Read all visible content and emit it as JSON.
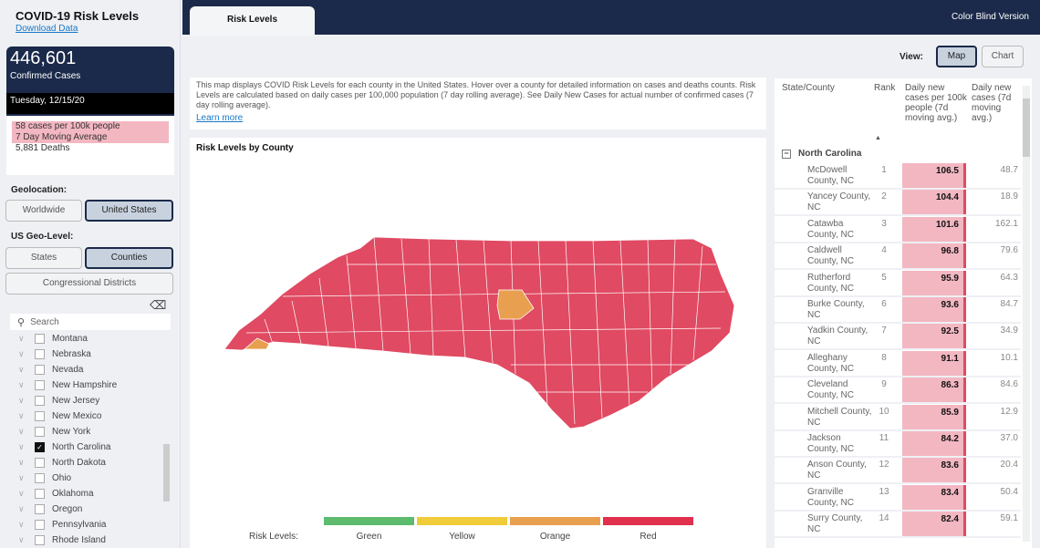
{
  "sidebar": {
    "title": "COVID-19 Risk Levels",
    "download": "Download Data",
    "confirmed": "446,601",
    "confirmed_label": "Confirmed Cases",
    "date": "Tuesday, 12/15/20",
    "stat1": "58 cases per 100k people",
    "stat2": "7 Day Moving Average",
    "deaths": "5,881 Deaths",
    "geo_label": "Geolocation:",
    "geo_options": [
      "Worldwide",
      "United States"
    ],
    "geo_selected": "United States",
    "level_label": "US Geo-Level:",
    "level_options": [
      "States",
      "Counties",
      "Congressional Districts"
    ],
    "level_selected": "Counties",
    "search_placeholder": "Search",
    "states": [
      {
        "name": "Montana",
        "checked": false
      },
      {
        "name": "Nebraska",
        "checked": false
      },
      {
        "name": "Nevada",
        "checked": false
      },
      {
        "name": "New Hampshire",
        "checked": false
      },
      {
        "name": "New Jersey",
        "checked": false
      },
      {
        "name": "New Mexico",
        "checked": false
      },
      {
        "name": "New York",
        "checked": false
      },
      {
        "name": "North Carolina",
        "checked": true
      },
      {
        "name": "North Dakota",
        "checked": false
      },
      {
        "name": "Ohio",
        "checked": false
      },
      {
        "name": "Oklahoma",
        "checked": false
      },
      {
        "name": "Oregon",
        "checked": false
      },
      {
        "name": "Pennsylvania",
        "checked": false
      },
      {
        "name": "Rhode Island",
        "checked": false
      }
    ]
  },
  "header": {
    "tab": "Risk Levels",
    "color_blind": "Color Blind Version"
  },
  "view": {
    "label": "View:",
    "map": "Map",
    "chart": "Chart",
    "selected": "Map"
  },
  "description": {
    "text": "This map displays COVID Risk Levels for each county in the United States. Hover over a county for detailed information on cases and deaths counts. Risk Levels are calculated based on daily cases per 100,000 population (7 day rolling average). See Daily New Cases for actual number of confirmed cases (7 day rolling average).",
    "link": "Learn more"
  },
  "map": {
    "title": "Risk Levels by County",
    "legend_label": "Risk Levels:",
    "levels": [
      {
        "name": "Green",
        "color": "#5dbb6e"
      },
      {
        "name": "Yellow",
        "color": "#f0cc3a"
      },
      {
        "name": "Orange",
        "color": "#e8a050"
      },
      {
        "name": "Red",
        "color": "#e0304e"
      }
    ],
    "county_color": "#e04a62",
    "orange_color": "#e8a050"
  },
  "table": {
    "headers": [
      "State/County",
      "Rank",
      "Daily new cases per 100k people (7d moving avg.)",
      "Daily new cases (7d moving avg.)"
    ],
    "group": "North Carolina",
    "rows": [
      {
        "county": "McDowell County, NC",
        "rank": "1",
        "per100k": "106.5",
        "cases": "48.7"
      },
      {
        "county": "Yancey County, NC",
        "rank": "2",
        "per100k": "104.4",
        "cases": "18.9"
      },
      {
        "county": "Catawba County, NC",
        "rank": "3",
        "per100k": "101.6",
        "cases": "162.1"
      },
      {
        "county": "Caldwell County, NC",
        "rank": "4",
        "per100k": "96.8",
        "cases": "79.6"
      },
      {
        "county": "Rutherford County, NC",
        "rank": "5",
        "per100k": "95.9",
        "cases": "64.3"
      },
      {
        "county": "Burke County, NC",
        "rank": "6",
        "per100k": "93.6",
        "cases": "84.7"
      },
      {
        "county": "Yadkin County, NC",
        "rank": "7",
        "per100k": "92.5",
        "cases": "34.9"
      },
      {
        "county": "Alleghany County, NC",
        "rank": "8",
        "per100k": "91.1",
        "cases": "10.1"
      },
      {
        "county": "Cleveland County, NC",
        "rank": "9",
        "per100k": "86.3",
        "cases": "84.6"
      },
      {
        "county": "Mitchell County, NC",
        "rank": "10",
        "per100k": "85.9",
        "cases": "12.9"
      },
      {
        "county": "Jackson County, NC",
        "rank": "11",
        "per100k": "84.2",
        "cases": "37.0"
      },
      {
        "county": "Anson County, NC",
        "rank": "12",
        "per100k": "83.6",
        "cases": "20.4"
      },
      {
        "county": "Granville County, NC",
        "rank": "13",
        "per100k": "83.4",
        "cases": "50.4"
      },
      {
        "county": "Surry County, NC",
        "rank": "14",
        "per100k": "82.4",
        "cases": "59.1"
      }
    ]
  }
}
